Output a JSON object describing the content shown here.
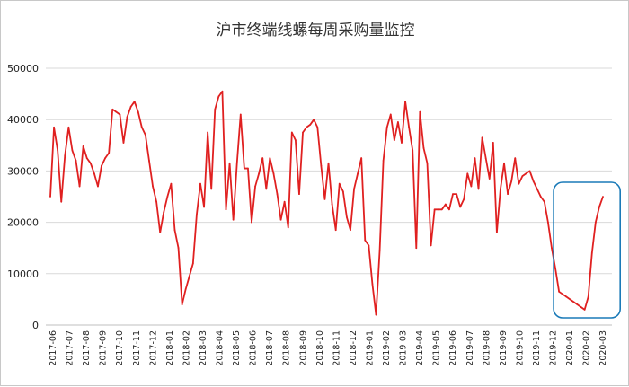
{
  "chart_data": {
    "type": "line",
    "title": "沪市终端线螺每周采购量监控",
    "xlabel": "",
    "ylabel": "",
    "ylim": [
      0,
      50000
    ],
    "yticks": [
      0,
      10000,
      20000,
      30000,
      40000,
      50000
    ],
    "grid": "horizontal",
    "legend": "none",
    "colors": {
      "series": "#e02020",
      "highlight": "#1a7ab8",
      "grid": "#d9d9d9"
    },
    "xtick_labels": [
      "2017-06",
      "2017-07",
      "2017-08",
      "2017-09",
      "2017-10",
      "2017-11",
      "2017-12",
      "2018-01",
      "2018-02",
      "2018-03",
      "2018-04",
      "2018-05",
      "2018-06",
      "2018-07",
      "2018-08",
      "2018-09",
      "2018-10",
      "2018-11",
      "2018-12",
      "2019-01",
      "2019-02",
      "2019-03",
      "2019-04",
      "2019-05",
      "2019-06",
      "2019-07",
      "2019-08",
      "2019-09",
      "2019-10",
      "2019-11",
      "2019-12",
      "2020-01",
      "2020-02",
      "2020-03"
    ],
    "highlight_range": {
      "from": "2020-01",
      "to": "2020-03"
    },
    "series": [
      {
        "values": [
          25000,
          38500,
          34000,
          24000,
          33000,
          38500,
          34000,
          32000,
          27000,
          34800,
          32500,
          31500,
          29500,
          27000,
          31000,
          32500,
          33500,
          42000,
          41500,
          41000,
          35500,
          40500,
          42500,
          43500,
          41500,
          38500,
          37000,
          32000,
          27000,
          24000,
          18000,
          22000,
          25000,
          27500,
          18500,
          15000,
          4000,
          7000,
          9500,
          12000,
          21500,
          27500,
          23000,
          37500,
          26500,
          42000,
          44500,
          45500,
          22500,
          31500,
          20500,
          31500,
          41000,
          30500,
          30500,
          20000,
          27000,
          29500,
          32500,
          26500,
          32500,
          29500,
          25500,
          20500,
          24000,
          19000,
          37500,
          36000,
          25500,
          37500,
          38500,
          39000,
          40000,
          38500,
          31000,
          24500,
          31500,
          23500,
          18500,
          27500,
          26000,
          21000,
          18500,
          26500,
          29500,
          32500,
          16500,
          15500,
          8000,
          2000,
          14500,
          32000,
          38500,
          41000,
          36000,
          39500,
          35500,
          43500,
          38500,
          34000,
          15000,
          41500,
          34500,
          31500,
          15500,
          22500,
          22500,
          22500,
          23500,
          22500,
          25500,
          25500,
          23000,
          24500,
          29500,
          27000,
          32500,
          26500,
          36500,
          32500,
          28500,
          35500,
          18000,
          26500,
          31500,
          25500,
          28000,
          32500,
          27500,
          29000,
          29500,
          30000,
          28000,
          26500,
          25000,
          24000,
          20000,
          15000,
          11000,
          6500,
          6000,
          5500,
          5000,
          4500,
          4000,
          3500,
          3000,
          5500,
          14000,
          20000,
          23000,
          25000
        ]
      }
    ]
  }
}
